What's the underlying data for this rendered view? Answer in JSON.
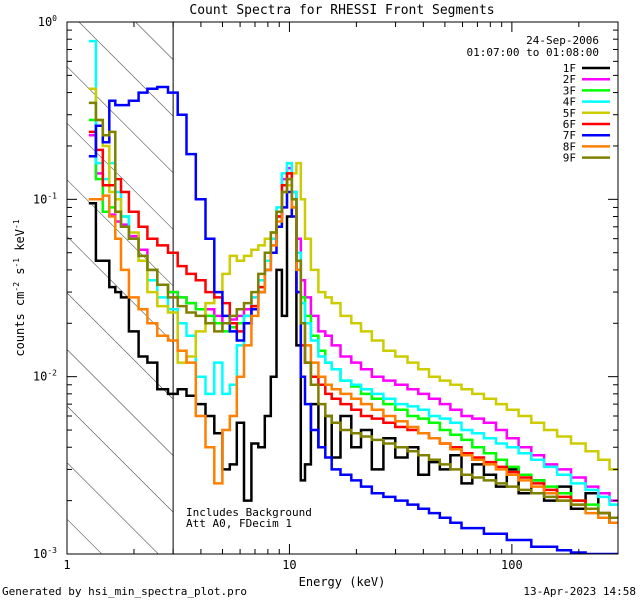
{
  "chart_data": {
    "type": "line",
    "title": "Count Spectra for RHESSI Front Segments",
    "xlabel": "Energy (keV)",
    "ylabel_main": "counts cm",
    "ylabel_sup1": "-2",
    "ylabel_mid": " s",
    "ylabel_sup2": "-1",
    "ylabel_mid2": " keV",
    "ylabel_sup3": "-1",
    "xscale": "log",
    "yscale": "log",
    "xlim": [
      1.0,
      300.0
    ],
    "ylim": [
      0.001,
      1.0
    ],
    "x_ticks": [
      {
        "v": 1,
        "label": "1"
      },
      {
        "v": 10,
        "label": "10"
      },
      {
        "v": 100,
        "label": "100"
      }
    ],
    "y_ticks": [
      {
        "v": 1,
        "base": "10",
        "exp": "0"
      },
      {
        "v": 0.1,
        "base": "10",
        "exp": "-1"
      },
      {
        "v": 0.01,
        "base": "10",
        "exp": "-2"
      },
      {
        "v": 0.001,
        "base": "10",
        "exp": "-3"
      }
    ],
    "date": "24-Sep-2006",
    "time_range": "01:07:00 to 01:08:00",
    "annotation_line1": "Includes Background",
    "annotation_line2": "Att A0, FDecim 1",
    "hatched_region_max_keV": 3.0,
    "series": [
      {
        "name": "1F",
        "color": "#000000",
        "x": [
          1.3,
          1.4,
          1.5,
          1.6,
          1.7,
          1.8,
          2.0,
          2.2,
          2.4,
          2.7,
          3.0,
          3.3,
          3.6,
          4.0,
          4.4,
          4.8,
          5.2,
          5.6,
          6.0,
          6.5,
          7.0,
          7.5,
          8.0,
          8.5,
          9.0,
          9.5,
          10.0,
          10.5,
          11.0,
          11.5,
          12.0,
          13.0,
          14.0,
          15.0,
          16.0,
          18.0,
          20.0,
          22.0,
          25.0,
          28.0,
          32.0,
          36.0,
          40.0,
          45.0,
          50.0,
          56.0,
          63.0,
          70.0,
          80.0,
          90.0,
          100.0,
          115.0,
          130.0,
          150.0,
          170.0,
          200.0,
          230.0,
          260.0,
          290.0
        ],
        "values": [
          0.095,
          0.045,
          0.045,
          0.032,
          0.03,
          0.028,
          0.018,
          0.013,
          0.012,
          0.0085,
          0.008,
          0.0085,
          0.0078,
          0.007,
          0.006,
          0.0048,
          0.003,
          0.0032,
          0.0055,
          0.002,
          0.0042,
          0.004,
          0.006,
          0.01,
          0.04,
          0.022,
          0.08,
          0.1,
          0.015,
          0.0026,
          0.0032,
          0.007,
          0.004,
          0.006,
          0.0035,
          0.006,
          0.004,
          0.005,
          0.003,
          0.0045,
          0.0035,
          0.004,
          0.0028,
          0.0033,
          0.003,
          0.0036,
          0.0025,
          0.0032,
          0.0028,
          0.0024,
          0.003,
          0.0022,
          0.0026,
          0.002,
          0.0024,
          0.0018,
          0.0022,
          0.0017,
          0.0015
        ]
      },
      {
        "name": "2F",
        "color": "#ff00ff",
        "x": [
          1.3,
          1.4,
          1.5,
          1.6,
          1.7,
          1.8,
          2.0,
          2.2,
          2.4,
          2.7,
          3.0,
          3.3,
          3.6,
          4.0,
          4.4,
          4.8,
          5.2,
          5.6,
          6.0,
          6.5,
          7.0,
          7.5,
          8.0,
          8.5,
          9.0,
          9.5,
          10.0,
          10.5,
          11.0,
          11.5,
          12.0,
          13.0,
          14.0,
          15.0,
          16.0,
          18.0,
          20.0,
          22.0,
          25.0,
          28.0,
          32.0,
          36.0,
          40.0,
          45.0,
          50.0,
          56.0,
          63.0,
          70.0,
          80.0,
          90.0,
          100.0,
          115.0,
          130.0,
          150.0,
          170.0,
          200.0,
          230.0,
          260.0,
          290.0
        ],
        "values": [
          0.23,
          0.14,
          0.085,
          0.082,
          0.075,
          0.072,
          0.062,
          0.052,
          0.04,
          0.033,
          0.03,
          0.028,
          0.026,
          0.024,
          0.024,
          0.022,
          0.02,
          0.021,
          0.022,
          0.024,
          0.028,
          0.035,
          0.045,
          0.06,
          0.08,
          0.13,
          0.15,
          0.11,
          0.06,
          0.035,
          0.028,
          0.022,
          0.018,
          0.017,
          0.015,
          0.013,
          0.012,
          0.011,
          0.01,
          0.0095,
          0.009,
          0.0085,
          0.008,
          0.0075,
          0.007,
          0.0065,
          0.006,
          0.0058,
          0.0055,
          0.005,
          0.0045,
          0.004,
          0.0036,
          0.0032,
          0.003,
          0.0027,
          0.0024,
          0.0022,
          0.002
        ]
      },
      {
        "name": "3F",
        "color": "#00ff00",
        "x": [
          1.3,
          1.4,
          1.5,
          1.6,
          1.7,
          1.8,
          2.0,
          2.2,
          2.4,
          2.7,
          3.0,
          3.3,
          3.6,
          4.0,
          4.4,
          4.8,
          5.2,
          5.6,
          6.0,
          6.5,
          7.0,
          7.5,
          8.0,
          8.5,
          9.0,
          9.5,
          10.0,
          10.5,
          11.0,
          11.5,
          12.0,
          13.0,
          14.0,
          15.0,
          16.0,
          18.0,
          20.0,
          22.0,
          25.0,
          28.0,
          32.0,
          36.0,
          40.0,
          45.0,
          50.0,
          56.0,
          63.0,
          70.0,
          80.0,
          90.0,
          100.0,
          115.0,
          130.0,
          150.0,
          170.0,
          200.0,
          230.0,
          260.0,
          290.0
        ],
        "values": [
          0.28,
          0.13,
          0.085,
          0.09,
          0.085,
          0.08,
          0.06,
          0.048,
          0.04,
          0.033,
          0.03,
          0.028,
          0.026,
          0.024,
          0.022,
          0.02,
          0.018,
          0.019,
          0.02,
          0.022,
          0.025,
          0.032,
          0.045,
          0.065,
          0.085,
          0.12,
          0.14,
          0.1,
          0.05,
          0.028,
          0.022,
          0.017,
          0.014,
          0.012,
          0.011,
          0.0095,
          0.0088,
          0.008,
          0.0075,
          0.007,
          0.0065,
          0.006,
          0.0058,
          0.0055,
          0.005,
          0.0047,
          0.0044,
          0.004,
          0.0037,
          0.0034,
          0.0031,
          0.0028,
          0.0026,
          0.0024,
          0.0022,
          0.002,
          0.0019,
          0.0017,
          0.0016
        ]
      },
      {
        "name": "4F",
        "color": "#00ffff",
        "x": [
          1.3,
          1.4,
          1.5,
          1.6,
          1.7,
          1.8,
          2.0,
          2.2,
          2.4,
          2.7,
          3.0,
          3.3,
          3.6,
          4.0,
          4.4,
          4.8,
          5.2,
          5.6,
          6.0,
          6.5,
          7.0,
          7.5,
          8.0,
          8.5,
          9.0,
          9.5,
          10.0,
          10.5,
          11.0,
          11.5,
          12.0,
          13.0,
          14.0,
          15.0,
          16.0,
          18.0,
          20.0,
          22.0,
          25.0,
          28.0,
          32.0,
          36.0,
          40.0,
          45.0,
          50.0,
          56.0,
          63.0,
          70.0,
          80.0,
          90.0,
          100.0,
          115.0,
          130.0,
          150.0,
          170.0,
          200.0,
          230.0,
          260.0,
          290.0
        ],
        "values": [
          0.78,
          0.16,
          0.13,
          0.16,
          0.11,
          0.08,
          0.06,
          0.045,
          0.035,
          0.028,
          0.024,
          0.02,
          0.017,
          0.01,
          0.008,
          0.012,
          0.008,
          0.009,
          0.015,
          0.022,
          0.028,
          0.035,
          0.045,
          0.06,
          0.09,
          0.14,
          0.16,
          0.11,
          0.05,
          0.026,
          0.02,
          0.016,
          0.013,
          0.012,
          0.011,
          0.0095,
          0.009,
          0.0085,
          0.008,
          0.0075,
          0.007,
          0.0068,
          0.0065,
          0.006,
          0.0058,
          0.0055,
          0.005,
          0.0048,
          0.0045,
          0.0042,
          0.004,
          0.0037,
          0.0034,
          0.0031,
          0.0028,
          0.0025,
          0.0023,
          0.0021,
          0.0019
        ]
      },
      {
        "name": "5F",
        "color": "#cccc00",
        "x": [
          1.3,
          1.4,
          1.5,
          1.6,
          1.7,
          1.8,
          2.0,
          2.2,
          2.4,
          2.7,
          3.0,
          3.3,
          3.6,
          4.0,
          4.4,
          4.8,
          5.2,
          5.6,
          6.0,
          6.5,
          7.0,
          7.5,
          8.0,
          8.5,
          9.0,
          9.5,
          10.0,
          10.5,
          11.0,
          11.5,
          12.0,
          13.0,
          14.0,
          15.0,
          16.0,
          18.0,
          20.0,
          22.0,
          25.0,
          28.0,
          32.0,
          36.0,
          40.0,
          45.0,
          50.0,
          56.0,
          63.0,
          70.0,
          80.0,
          90.0,
          100.0,
          115.0,
          130.0,
          150.0,
          170.0,
          200.0,
          230.0,
          260.0,
          290.0
        ],
        "values": [
          0.42,
          0.28,
          0.2,
          0.11,
          0.1,
          0.07,
          0.065,
          0.045,
          0.03,
          0.025,
          0.023,
          0.012,
          0.013,
          0.018,
          0.026,
          0.03,
          0.038,
          0.048,
          0.045,
          0.048,
          0.052,
          0.055,
          0.06,
          0.065,
          0.07,
          0.09,
          0.12,
          0.14,
          0.16,
          0.1,
          0.06,
          0.04,
          0.03,
          0.028,
          0.026,
          0.022,
          0.02,
          0.018,
          0.016,
          0.014,
          0.013,
          0.012,
          0.011,
          0.01,
          0.0095,
          0.009,
          0.0085,
          0.008,
          0.0075,
          0.007,
          0.0065,
          0.006,
          0.0055,
          0.005,
          0.0046,
          0.0042,
          0.0038,
          0.0034,
          0.003
        ]
      },
      {
        "name": "6F",
        "color": "#ff0000",
        "x": [
          1.3,
          1.4,
          1.5,
          1.6,
          1.7,
          1.8,
          2.0,
          2.2,
          2.4,
          2.7,
          3.0,
          3.3,
          3.6,
          4.0,
          4.4,
          4.8,
          5.2,
          5.6,
          6.0,
          6.5,
          7.0,
          7.5,
          8.0,
          8.5,
          9.0,
          9.5,
          10.0,
          10.5,
          11.0,
          11.5,
          12.0,
          13.0,
          14.0,
          15.0,
          16.0,
          18.0,
          20.0,
          22.0,
          25.0,
          28.0,
          32.0,
          36.0,
          40.0,
          45.0,
          50.0,
          56.0,
          63.0,
          70.0,
          80.0,
          90.0,
          100.0,
          115.0,
          130.0,
          150.0,
          170.0,
          200.0,
          230.0,
          260.0,
          290.0
        ],
        "values": [
          0.24,
          0.19,
          0.12,
          0.12,
          0.13,
          0.11,
          0.085,
          0.07,
          0.06,
          0.055,
          0.05,
          0.042,
          0.038,
          0.035,
          0.03,
          0.028,
          0.026,
          0.02,
          0.018,
          0.02,
          0.025,
          0.032,
          0.04,
          0.055,
          0.08,
          0.12,
          0.14,
          0.09,
          0.03,
          0.015,
          0.012,
          0.01,
          0.009,
          0.008,
          0.0075,
          0.007,
          0.0065,
          0.006,
          0.0058,
          0.0055,
          0.0052,
          0.005,
          0.0048,
          0.0045,
          0.0042,
          0.004,
          0.0037,
          0.0035,
          0.0033,
          0.0031,
          0.0029,
          0.0027,
          0.0025,
          0.0023,
          0.0021,
          0.002,
          0.0018,
          0.0017,
          0.0016
        ]
      },
      {
        "name": "7F",
        "color": "#0000ff",
        "x": [
          1.3,
          1.4,
          1.5,
          1.6,
          1.7,
          1.8,
          2.0,
          2.2,
          2.4,
          2.7,
          3.0,
          3.3,
          3.6,
          4.0,
          4.4,
          4.8,
          5.2,
          5.6,
          6.0,
          6.5,
          7.0,
          7.5,
          8.0,
          8.5,
          9.0,
          9.5,
          10.0,
          10.5,
          11.0,
          11.5,
          12.0,
          13.0,
          14.0,
          15.0,
          16.0,
          18.0,
          20.0,
          22.0,
          25.0,
          28.0,
          32.0,
          36.0,
          40.0,
          45.0,
          50.0,
          56.0,
          63.0,
          70.0,
          80.0,
          90.0,
          100.0,
          115.0,
          130.0,
          150.0,
          170.0,
          200.0,
          230.0,
          260.0,
          290.0
        ],
        "values": [
          0.175,
          0.26,
          0.21,
          0.36,
          0.34,
          0.34,
          0.36,
          0.4,
          0.42,
          0.43,
          0.4,
          0.3,
          0.18,
          0.1,
          0.06,
          0.03,
          0.022,
          0.018,
          0.016,
          0.02,
          0.024,
          0.03,
          0.04,
          0.05,
          0.07,
          0.09,
          0.11,
          0.08,
          0.03,
          0.01,
          0.007,
          0.005,
          0.004,
          0.0035,
          0.003,
          0.0028,
          0.0026,
          0.0024,
          0.0022,
          0.0021,
          0.002,
          0.0019,
          0.0018,
          0.0017,
          0.0016,
          0.0015,
          0.0014,
          0.0014,
          0.0013,
          0.0013,
          0.0012,
          0.0012,
          0.0011,
          0.0011,
          0.00105,
          0.00102,
          0.001,
          0.001,
          0.001
        ]
      },
      {
        "name": "8F",
        "color": "#ff8000",
        "x": [
          1.3,
          1.4,
          1.5,
          1.6,
          1.7,
          1.8,
          2.0,
          2.2,
          2.4,
          2.7,
          3.0,
          3.3,
          3.6,
          4.0,
          4.4,
          4.8,
          5.2,
          5.6,
          6.0,
          6.5,
          7.0,
          7.5,
          8.0,
          8.5,
          9.0,
          9.5,
          10.0,
          10.5,
          11.0,
          11.5,
          12.0,
          13.0,
          14.0,
          15.0,
          16.0,
          18.0,
          20.0,
          22.0,
          25.0,
          28.0,
          32.0,
          36.0,
          40.0,
          45.0,
          50.0,
          56.0,
          63.0,
          70.0,
          80.0,
          90.0,
          100.0,
          115.0,
          130.0,
          150.0,
          170.0,
          200.0,
          230.0,
          260.0,
          290.0
        ],
        "values": [
          0.1,
          0.1,
          0.105,
          0.08,
          0.06,
          0.04,
          0.028,
          0.024,
          0.02,
          0.017,
          0.016,
          0.014,
          0.012,
          0.006,
          0.004,
          0.0025,
          0.005,
          0.006,
          0.01,
          0.015,
          0.022,
          0.03,
          0.04,
          0.055,
          0.075,
          0.11,
          0.13,
          0.09,
          0.04,
          0.02,
          0.015,
          0.012,
          0.01,
          0.009,
          0.0085,
          0.008,
          0.0075,
          0.007,
          0.0065,
          0.006,
          0.0056,
          0.0052,
          0.0048,
          0.0045,
          0.0042,
          0.0039,
          0.0036,
          0.0034,
          0.0032,
          0.003,
          0.0028,
          0.0026,
          0.0024,
          0.0022,
          0.002,
          0.0019,
          0.0017,
          0.0016,
          0.0015
        ]
      },
      {
        "name": "9F",
        "color": "#808000",
        "x": [
          1.3,
          1.4,
          1.5,
          1.6,
          1.7,
          1.8,
          2.0,
          2.2,
          2.4,
          2.7,
          3.0,
          3.3,
          3.6,
          4.0,
          4.4,
          4.8,
          5.2,
          5.6,
          6.0,
          6.5,
          7.0,
          7.5,
          8.0,
          8.5,
          9.0,
          9.5,
          10.0,
          10.5,
          11.0,
          11.5,
          12.0,
          13.0,
          14.0,
          15.0,
          16.0,
          18.0,
          20.0,
          22.0,
          25.0,
          28.0,
          32.0,
          36.0,
          40.0,
          45.0,
          50.0,
          56.0,
          63.0,
          70.0,
          80.0,
          90.0,
          100.0,
          115.0,
          130.0,
          150.0,
          170.0,
          200.0,
          230.0,
          260.0,
          290.0
        ],
        "values": [
          0.35,
          0.28,
          0.23,
          0.24,
          0.085,
          0.07,
          0.06,
          0.048,
          0.04,
          0.033,
          0.028,
          0.025,
          0.023,
          0.022,
          0.02,
          0.018,
          0.02,
          0.022,
          0.024,
          0.026,
          0.03,
          0.038,
          0.05,
          0.065,
          0.085,
          0.11,
          0.13,
          0.1,
          0.045,
          0.02,
          0.012,
          0.009,
          0.007,
          0.006,
          0.0055,
          0.005,
          0.0048,
          0.0046,
          0.0044,
          0.0042,
          0.004,
          0.0038,
          0.0036,
          0.0034,
          0.0032,
          0.003,
          0.0028,
          0.0027,
          0.0026,
          0.0025,
          0.0024,
          0.0023,
          0.0022,
          0.0021,
          0.002,
          0.0019,
          0.0018,
          0.0017,
          0.0016
        ]
      }
    ]
  },
  "footer": {
    "generated_by": "Generated by hsi_min_spectra_plot.pro",
    "timestamp": "13-Apr-2023 14:58"
  }
}
